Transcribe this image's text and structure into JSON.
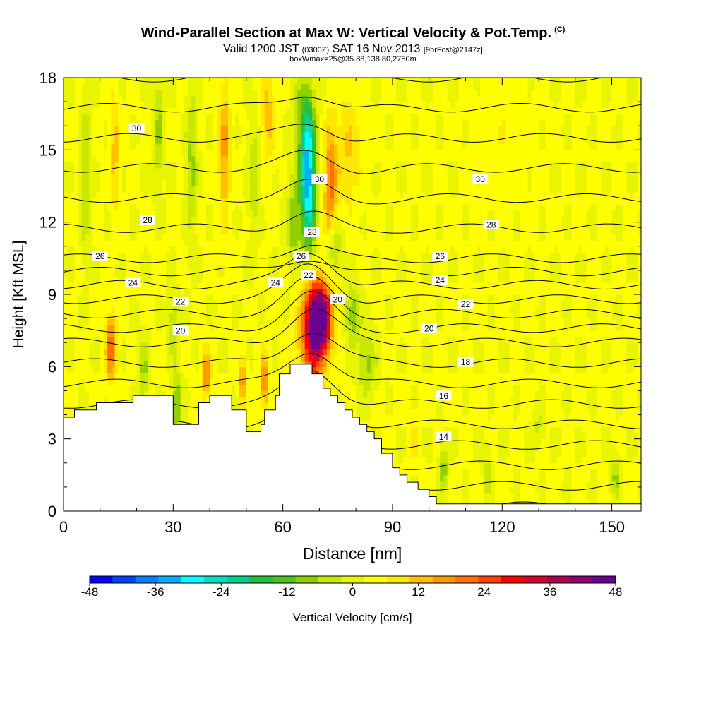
{
  "title": {
    "main": "Wind-Parallel Section at Max W: Vertical Velocity & Pot.Temp.",
    "copyright": "(C)",
    "line2_a": "Valid 1200 JST",
    "line2_b": "(0300Z)",
    "line2_c": "SAT 16 Nov 2013",
    "line2_d": "[9hrFcst@2147z]",
    "line3": "boxWmax=25@35.88,138.80,2750m"
  },
  "chart_data": {
    "type": "heatmap",
    "xlabel": "Distance [nm]",
    "ylabel": "Height [Kft MSL]",
    "xlim": [
      0,
      158
    ],
    "ylim": [
      0,
      18
    ],
    "xticks": [
      0,
      30,
      60,
      90,
      120,
      150
    ],
    "yticks": [
      0,
      3,
      6,
      9,
      12,
      15,
      18
    ],
    "colorbar": {
      "label": "Vertical Velocity [cm/s]",
      "ticks": [
        -48,
        -36,
        -24,
        -12,
        0,
        12,
        24,
        36,
        48
      ],
      "colors": [
        "#0000ff",
        "#0040ff",
        "#0080ff",
        "#00b0ff",
        "#00ffff",
        "#00e0c0",
        "#00d090",
        "#20c040",
        "#50c020",
        "#90d000",
        "#c8e800",
        "#e8f400",
        "#ffff00",
        "#ffe800",
        "#ffc000",
        "#ff9a00",
        "#ff7000",
        "#ff4000",
        "#ff0000",
        "#d80030",
        "#b00050",
        "#900070",
        "#6a0090"
      ]
    },
    "terrain": [
      [
        0,
        3.9
      ],
      [
        3,
        4.2
      ],
      [
        9,
        4.5
      ],
      [
        19,
        4.8
      ],
      [
        29,
        4.8
      ],
      [
        30,
        3.6
      ],
      [
        36,
        3.6
      ],
      [
        37,
        4.5
      ],
      [
        40,
        4.8
      ],
      [
        45,
        4.8
      ],
      [
        46,
        4.2
      ],
      [
        49,
        4.2
      ],
      [
        50,
        3.3
      ],
      [
        53,
        3.3
      ],
      [
        54,
        3.6
      ],
      [
        55,
        4.2
      ],
      [
        58,
        4.8
      ],
      [
        59,
        5.7
      ],
      [
        62,
        6.1
      ],
      [
        67,
        6.1
      ],
      [
        68,
        5.7
      ],
      [
        71,
        5.1
      ],
      [
        73,
        4.8
      ],
      [
        75,
        4.5
      ],
      [
        77,
        4.2
      ],
      [
        79,
        3.9
      ],
      [
        81,
        3.6
      ],
      [
        83,
        3.3
      ],
      [
        85,
        3.0
      ],
      [
        87,
        2.4
      ],
      [
        90,
        1.8
      ],
      [
        92,
        1.5
      ],
      [
        94,
        1.2
      ],
      [
        97,
        0.9
      ],
      [
        100,
        0.6
      ],
      [
        102,
        0.3
      ],
      [
        158,
        0.3
      ]
    ],
    "velocity_features": [
      {
        "x": 70,
        "y": 8.0,
        "sx": 3.2,
        "sy": 1.4,
        "w": 48
      },
      {
        "x": 68,
        "y": 7.0,
        "sx": 3.5,
        "sy": 2.3,
        "w": 22
      },
      {
        "x": 67,
        "y": 13.5,
        "sx": 2.0,
        "sy": 2.6,
        "w": -34
      },
      {
        "x": 66,
        "y": 16.0,
        "sx": 2.8,
        "sy": 2.2,
        "w": -14
      },
      {
        "x": 63,
        "y": 12.0,
        "sx": 2.0,
        "sy": 1.8,
        "w": -12
      },
      {
        "x": 74,
        "y": 11.0,
        "sx": 2.0,
        "sy": 1.2,
        "w": -12
      },
      {
        "x": 79,
        "y": 8.2,
        "sx": 2.0,
        "sy": 1.2,
        "w": -12
      },
      {
        "x": 83,
        "y": 6.2,
        "sx": 2.4,
        "sy": 1.3,
        "w": -10
      },
      {
        "x": 73,
        "y": 13.5,
        "sx": 1.8,
        "sy": 2.5,
        "w": 18
      },
      {
        "x": 78,
        "y": 15.0,
        "sx": 3.5,
        "sy": 2.5,
        "w": 8
      },
      {
        "x": 13,
        "y": 6.8,
        "sx": 1.4,
        "sy": 1.3,
        "w": 22
      },
      {
        "x": 31,
        "y": 4.4,
        "sx": 1.0,
        "sy": 1.3,
        "w": -16
      },
      {
        "x": 30,
        "y": 7.8,
        "sx": 1.2,
        "sy": 1.5,
        "w": -8
      },
      {
        "x": 39,
        "y": 5.7,
        "sx": 1.2,
        "sy": 1.0,
        "w": 18
      },
      {
        "x": 22,
        "y": 5.8,
        "sx": 1.2,
        "sy": 1.4,
        "w": -10
      },
      {
        "x": 49,
        "y": 5.4,
        "sx": 1.0,
        "sy": 1.0,
        "w": 16
      },
      {
        "x": 55,
        "y": 5.4,
        "sx": 1.0,
        "sy": 1.2,
        "w": 18
      },
      {
        "x": 35,
        "y": 14.5,
        "sx": 1.5,
        "sy": 3.0,
        "w": -10
      },
      {
        "x": 44,
        "y": 15.0,
        "sx": 1.5,
        "sy": 3.0,
        "w": 14
      },
      {
        "x": 26,
        "y": 16.0,
        "sx": 1.2,
        "sy": 2.5,
        "w": -10
      },
      {
        "x": 14,
        "y": 15.0,
        "sx": 1.2,
        "sy": 2.5,
        "w": 10
      },
      {
        "x": 6,
        "y": 14.0,
        "sx": 1.2,
        "sy": 3.0,
        "w": -10
      },
      {
        "x": 56,
        "y": 16.5,
        "sx": 2.0,
        "sy": 2.0,
        "w": 10
      },
      {
        "x": 52,
        "y": 14.0,
        "sx": 1.5,
        "sy": 2.5,
        "w": -8
      },
      {
        "x": 104,
        "y": 1.8,
        "sx": 1.0,
        "sy": 1.0,
        "w": -12
      },
      {
        "x": 116,
        "y": 1.5,
        "sx": 1.0,
        "sy": 1.0,
        "w": -8
      },
      {
        "x": 151,
        "y": 1.4,
        "sx": 1.2,
        "sy": 0.9,
        "w": -10
      },
      {
        "x": 120,
        "y": 15.5,
        "sx": 7.0,
        "sy": 2.5,
        "w": 3
      },
      {
        "x": 96,
        "y": 3.0,
        "sx": 1.2,
        "sy": 1.0,
        "w": 5
      },
      {
        "x": 130,
        "y": 3.5,
        "sx": 1.5,
        "sy": 0.8,
        "w": -6
      }
    ],
    "isentrope_labels": [
      {
        "text": "30",
        "x": 20,
        "y": 15.9
      },
      {
        "text": "28",
        "x": 23,
        "y": 12.1
      },
      {
        "text": "26",
        "x": 10,
        "y": 10.6
      },
      {
        "text": "24",
        "x": 19,
        "y": 9.5
      },
      {
        "text": "22",
        "x": 32,
        "y": 8.7
      },
      {
        "text": "20",
        "x": 32,
        "y": 7.5
      },
      {
        "text": "30",
        "x": 70,
        "y": 13.8
      },
      {
        "text": "28",
        "x": 68,
        "y": 11.6
      },
      {
        "text": "26",
        "x": 65,
        "y": 10.6
      },
      {
        "text": "24",
        "x": 58,
        "y": 9.5
      },
      {
        "text": "22",
        "x": 67,
        "y": 9.8
      },
      {
        "text": "20",
        "x": 75,
        "y": 8.8
      },
      {
        "text": "30",
        "x": 114,
        "y": 13.8
      },
      {
        "text": "28",
        "x": 117,
        "y": 11.9
      },
      {
        "text": "26",
        "x": 103,
        "y": 10.6
      },
      {
        "text": "24",
        "x": 103,
        "y": 9.6
      },
      {
        "text": "22",
        "x": 110,
        "y": 8.6
      },
      {
        "text": "20",
        "x": 100,
        "y": 7.6
      },
      {
        "text": "18",
        "x": 110,
        "y": 6.2
      },
      {
        "text": "16",
        "x": 104,
        "y": 4.8
      },
      {
        "text": "14",
        "x": 104,
        "y": 3.1
      }
    ]
  }
}
